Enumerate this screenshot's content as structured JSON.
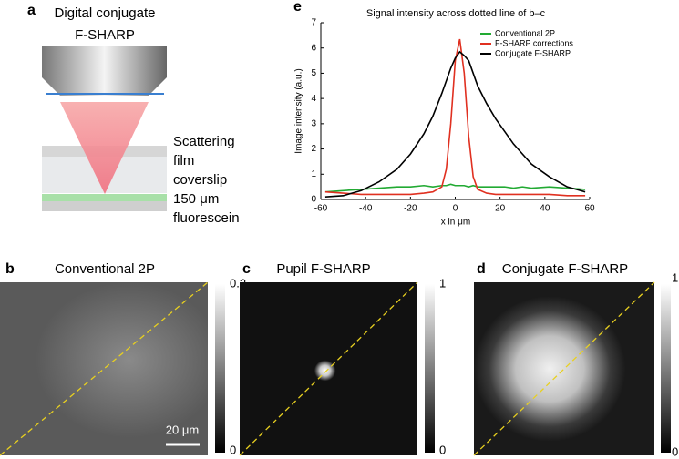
{
  "figure": {
    "a": {
      "label": "a",
      "title": [
        "Digital conjugate",
        "F-SHARP"
      ],
      "layers": [
        "Scattering",
        "film",
        "coverslip",
        "150 μm",
        "fluorescein"
      ]
    },
    "b": {
      "label": "b",
      "title": "Conventional 2P",
      "colorbar": {
        "max": 0.2,
        "min": 0
      },
      "scale_bar": "20 μm"
    },
    "c": {
      "label": "c",
      "title": "Pupil F-SHARP",
      "colorbar": {
        "max": 1,
        "min": 0
      }
    },
    "d": {
      "label": "d",
      "title": "Conjugate F-SHARP",
      "colorbar": {
        "max": 1,
        "min": 0
      }
    },
    "e": {
      "label": "e"
    }
  },
  "chart_data": {
    "type": "line",
    "title": "Signal intensity across dotted line of b–c",
    "x_label": "x in μm",
    "y_label": "Image intensity (a.u.)",
    "x": [
      -58,
      -50,
      -42,
      -34,
      -26,
      -20,
      -14,
      -10,
      -6,
      -4,
      -2,
      0,
      2,
      4,
      6,
      8,
      10,
      14,
      18,
      22,
      26,
      30,
      34,
      42,
      50,
      58
    ],
    "series": [
      {
        "name": "Conventional 2P",
        "color": "#22aa33",
        "values": [
          0.3,
          0.35,
          0.4,
          0.45,
          0.5,
          0.5,
          0.55,
          0.5,
          0.55,
          0.55,
          0.6,
          0.55,
          0.55,
          0.55,
          0.5,
          0.55,
          0.5,
          0.5,
          0.5,
          0.5,
          0.45,
          0.5,
          0.45,
          0.5,
          0.45,
          0.4
        ]
      },
      {
        "name": "F-SHARP corrections",
        "color": "#e03020",
        "values": [
          0.3,
          0.25,
          0.2,
          0.2,
          0.2,
          0.2,
          0.25,
          0.3,
          0.5,
          1.2,
          3.0,
          5.5,
          6.35,
          5.0,
          2.5,
          0.9,
          0.4,
          0.25,
          0.2,
          0.2,
          0.2,
          0.2,
          0.2,
          0.2,
          0.15,
          0.15
        ]
      },
      {
        "name": "Conjugate F-SHARP",
        "color": "#000000",
        "values": [
          0.1,
          0.15,
          0.35,
          0.7,
          1.2,
          1.8,
          2.6,
          3.3,
          4.2,
          4.7,
          5.2,
          5.6,
          5.85,
          5.7,
          5.5,
          5.0,
          4.5,
          3.8,
          3.2,
          2.7,
          2.2,
          1.8,
          1.4,
          0.9,
          0.5,
          0.3
        ]
      }
    ],
    "xlim": [
      -60,
      60
    ],
    "xticks": [
      -60,
      -40,
      -20,
      0,
      20,
      40,
      60
    ],
    "ylim": [
      0,
      7
    ],
    "yticks": [
      0,
      1,
      2,
      3,
      4,
      5,
      6,
      7
    ],
    "legend": "top-right"
  }
}
